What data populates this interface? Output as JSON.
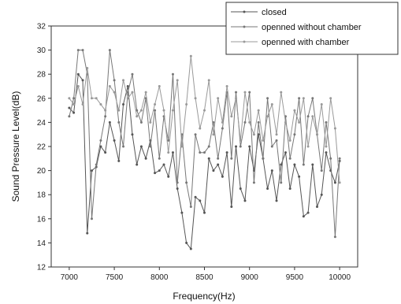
{
  "chart_data": {
    "type": "line",
    "xlabel": "Frequency(Hz)",
    "ylabel": "Sound Pressure Level(dB)",
    "xlim": [
      6800,
      10200
    ],
    "ylim": [
      12,
      32
    ],
    "xticks": [
      7000,
      7500,
      8000,
      8500,
      9000,
      9500,
      10000
    ],
    "xtick_labels": [
      "7000",
      "7500",
      "8000",
      "8500",
      "9000",
      "9500",
      "10000"
    ],
    "yticks": [
      12,
      14,
      16,
      18,
      20,
      22,
      24,
      26,
      28,
      30,
      32
    ],
    "ytick_labels": [
      "12",
      "14",
      "16",
      "18",
      "20",
      "22",
      "24",
      "26",
      "28",
      "30",
      "32"
    ],
    "grid": false,
    "legend_position": "top-right",
    "colors": {
      "closed": "#555555",
      "openned without chamber": "#777777",
      "openned with chamber": "#999999"
    },
    "x": [
      7000,
      7050,
      7100,
      7150,
      7200,
      7250,
      7300,
      7350,
      7400,
      7450,
      7500,
      7550,
      7600,
      7650,
      7700,
      7750,
      7800,
      7850,
      7900,
      7950,
      8000,
      8050,
      8100,
      8150,
      8200,
      8250,
      8300,
      8350,
      8400,
      8450,
      8500,
      8550,
      8600,
      8650,
      8700,
      8750,
      8800,
      8850,
      8900,
      8950,
      9000,
      9050,
      9100,
      9150,
      9200,
      9250,
      9300,
      9350,
      9400,
      9450,
      9500,
      9550,
      9600,
      9650,
      9700,
      9750,
      9800,
      9850,
      9900,
      9950,
      10000
    ],
    "series": [
      {
        "name": "closed",
        "values": [
          25.2,
          24.8,
          28.0,
          27.5,
          14.8,
          20.0,
          20.3,
          22.0,
          21.5,
          24.0,
          22.5,
          20.8,
          25.5,
          27.0,
          23.0,
          20.5,
          22.0,
          21.0,
          22.5,
          19.8,
          20.0,
          20.5,
          19.5,
          21.5,
          18.5,
          16.5,
          14.0,
          13.5,
          17.8,
          17.5,
          16.5,
          21.0,
          20.0,
          20.5,
          19.5,
          21.5,
          17.0,
          22.0,
          18.5,
          17.5,
          22.0,
          20.0,
          23.0,
          21.0,
          18.5,
          20.0,
          17.5,
          20.5,
          21.5,
          18.5,
          20.5,
          19.5,
          16.2,
          16.5,
          20.5,
          17.0,
          18.0,
          21.5,
          20.0,
          19.0,
          20.8
        ]
      },
      {
        "name": "openned without chamber",
        "values": [
          24.5,
          26.0,
          30.0,
          30.0,
          28.0,
          16.0,
          20.5,
          22.5,
          24.5,
          30.0,
          27.5,
          24.0,
          22.0,
          26.5,
          28.0,
          25.0,
          24.0,
          26.0,
          22.0,
          25.0,
          21.0,
          24.5,
          22.5,
          28.0,
          19.0,
          23.0,
          19.0,
          17.0,
          23.0,
          21.5,
          21.5,
          22.0,
          24.0,
          21.0,
          23.5,
          26.5,
          21.0,
          26.5,
          22.0,
          24.0,
          26.5,
          19.0,
          24.0,
          21.0,
          26.0,
          22.0,
          22.5,
          19.0,
          24.5,
          21.0,
          23.0,
          26.0,
          20.5,
          24.5,
          26.0,
          23.0,
          20.0,
          24.0,
          21.0,
          14.5,
          21.0
        ]
      },
      {
        "name": "openned with chamber",
        "values": [
          26.0,
          25.5,
          27.0,
          25.5,
          28.5,
          26.0,
          26.0,
          25.5,
          25.0,
          27.0,
          26.5,
          25.0,
          27.5,
          26.0,
          26.5,
          24.5,
          25.0,
          26.5,
          24.0,
          25.5,
          27.0,
          25.0,
          21.5,
          25.0,
          27.5,
          22.0,
          25.5,
          29.5,
          26.0,
          23.5,
          25.0,
          27.5,
          23.0,
          26.0,
          24.0,
          27.0,
          24.5,
          26.0,
          22.5,
          26.5,
          24.0,
          23.0,
          25.0,
          22.5,
          24.5,
          25.5,
          23.0,
          26.5,
          24.0,
          22.5,
          25.0,
          24.0,
          26.0,
          22.0,
          24.5,
          23.0,
          25.5,
          22.0,
          26.0,
          23.5,
          19.0
        ]
      }
    ]
  }
}
